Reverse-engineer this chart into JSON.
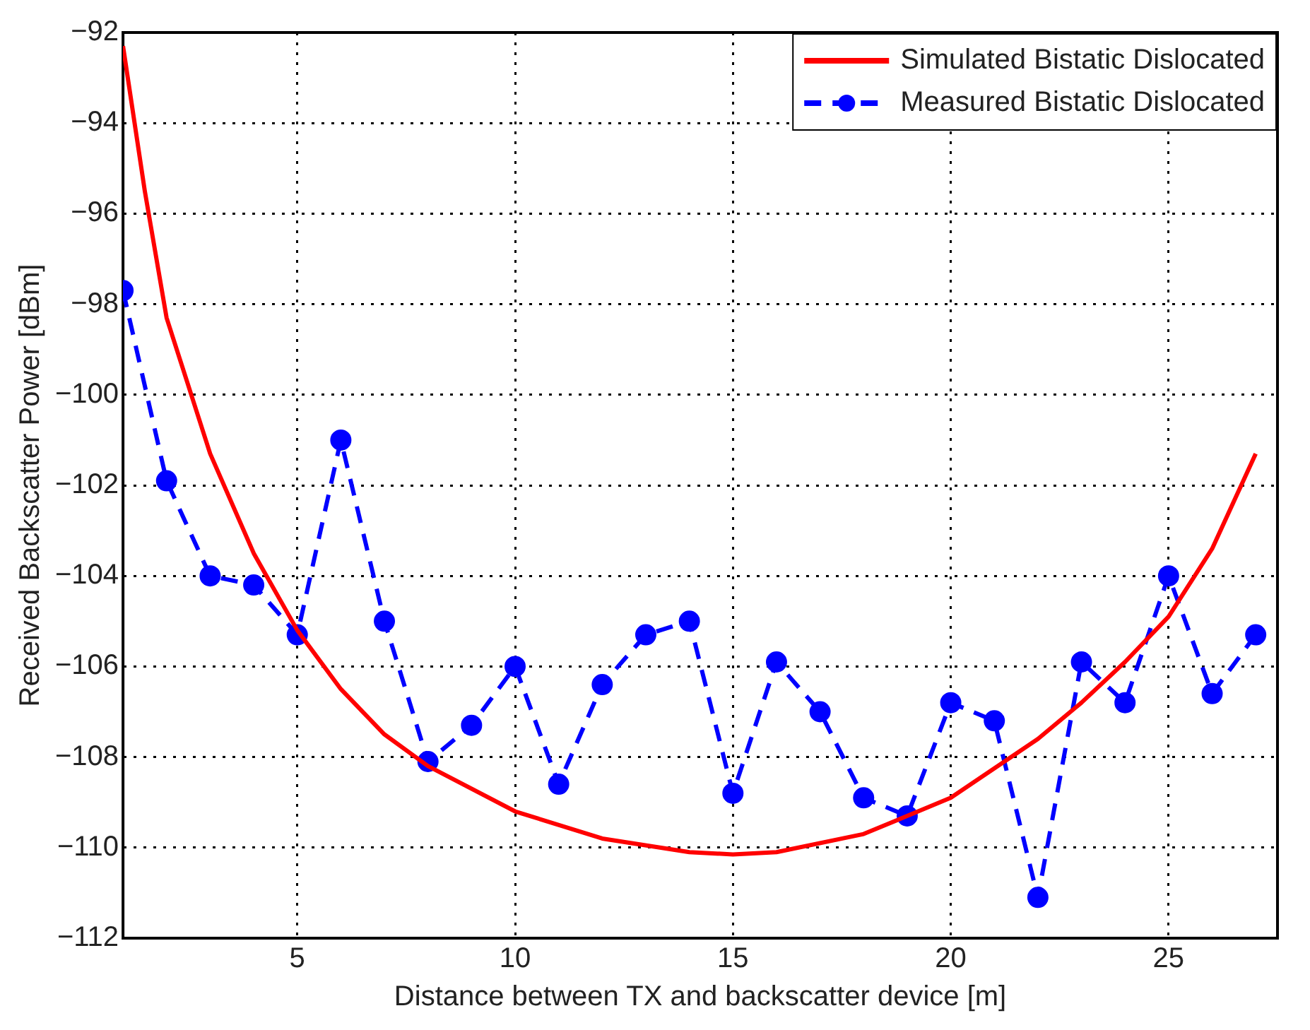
{
  "chart_data": {
    "type": "line",
    "xlabel": "Distance between TX and backscatter device [m]",
    "ylabel": "Received Backscatter Power [dBm]",
    "xlim": [
      1,
      27.5
    ],
    "xticks": [
      5,
      10,
      15,
      20,
      25
    ],
    "ylim": [
      -112,
      -92
    ],
    "yticks": [
      -112,
      -110,
      -108,
      -106,
      -104,
      -102,
      -100,
      -98,
      -96,
      -94,
      -92
    ],
    "grid": true,
    "legend": "top right",
    "series": [
      {
        "name": "Simulated Bistatic Dislocated",
        "color": "#ff0000",
        "marker": "none",
        "line_style": "solid",
        "x": [
          1,
          1.5,
          2,
          3,
          4,
          5,
          6,
          7,
          8,
          10,
          12,
          14,
          15,
          16,
          18,
          20,
          22,
          23,
          24,
          25,
          26,
          27
        ],
        "values": [
          -92.3,
          -95.5,
          -98.3,
          -101.3,
          -103.5,
          -105.2,
          -106.5,
          -107.5,
          -108.2,
          -109.2,
          -109.8,
          -110.1,
          -110.15,
          -110.1,
          -109.7,
          -108.9,
          -107.6,
          -106.8,
          -105.9,
          -104.9,
          -103.4,
          -101.3
        ]
      },
      {
        "name": "Measured Bistatic Dislocated",
        "color": "#0000ff",
        "marker": "circle",
        "line_style": "dashed",
        "x": [
          1,
          2,
          3,
          4,
          5,
          6,
          7,
          8,
          9,
          10,
          11,
          12,
          13,
          14,
          15,
          16,
          17,
          18,
          19,
          20,
          21,
          22,
          23,
          24,
          25,
          26,
          27
        ],
        "values": [
          -97.7,
          -101.9,
          -104.0,
          -104.2,
          -105.3,
          -101.0,
          -105.0,
          -108.1,
          -107.3,
          -106.0,
          -108.6,
          -106.4,
          -105.3,
          -105.0,
          -108.8,
          -105.9,
          -107.0,
          -108.9,
          -109.3,
          -106.8,
          -107.2,
          -111.1,
          -105.9,
          -106.8,
          -104.0,
          -106.6,
          -105.3
        ]
      }
    ]
  }
}
